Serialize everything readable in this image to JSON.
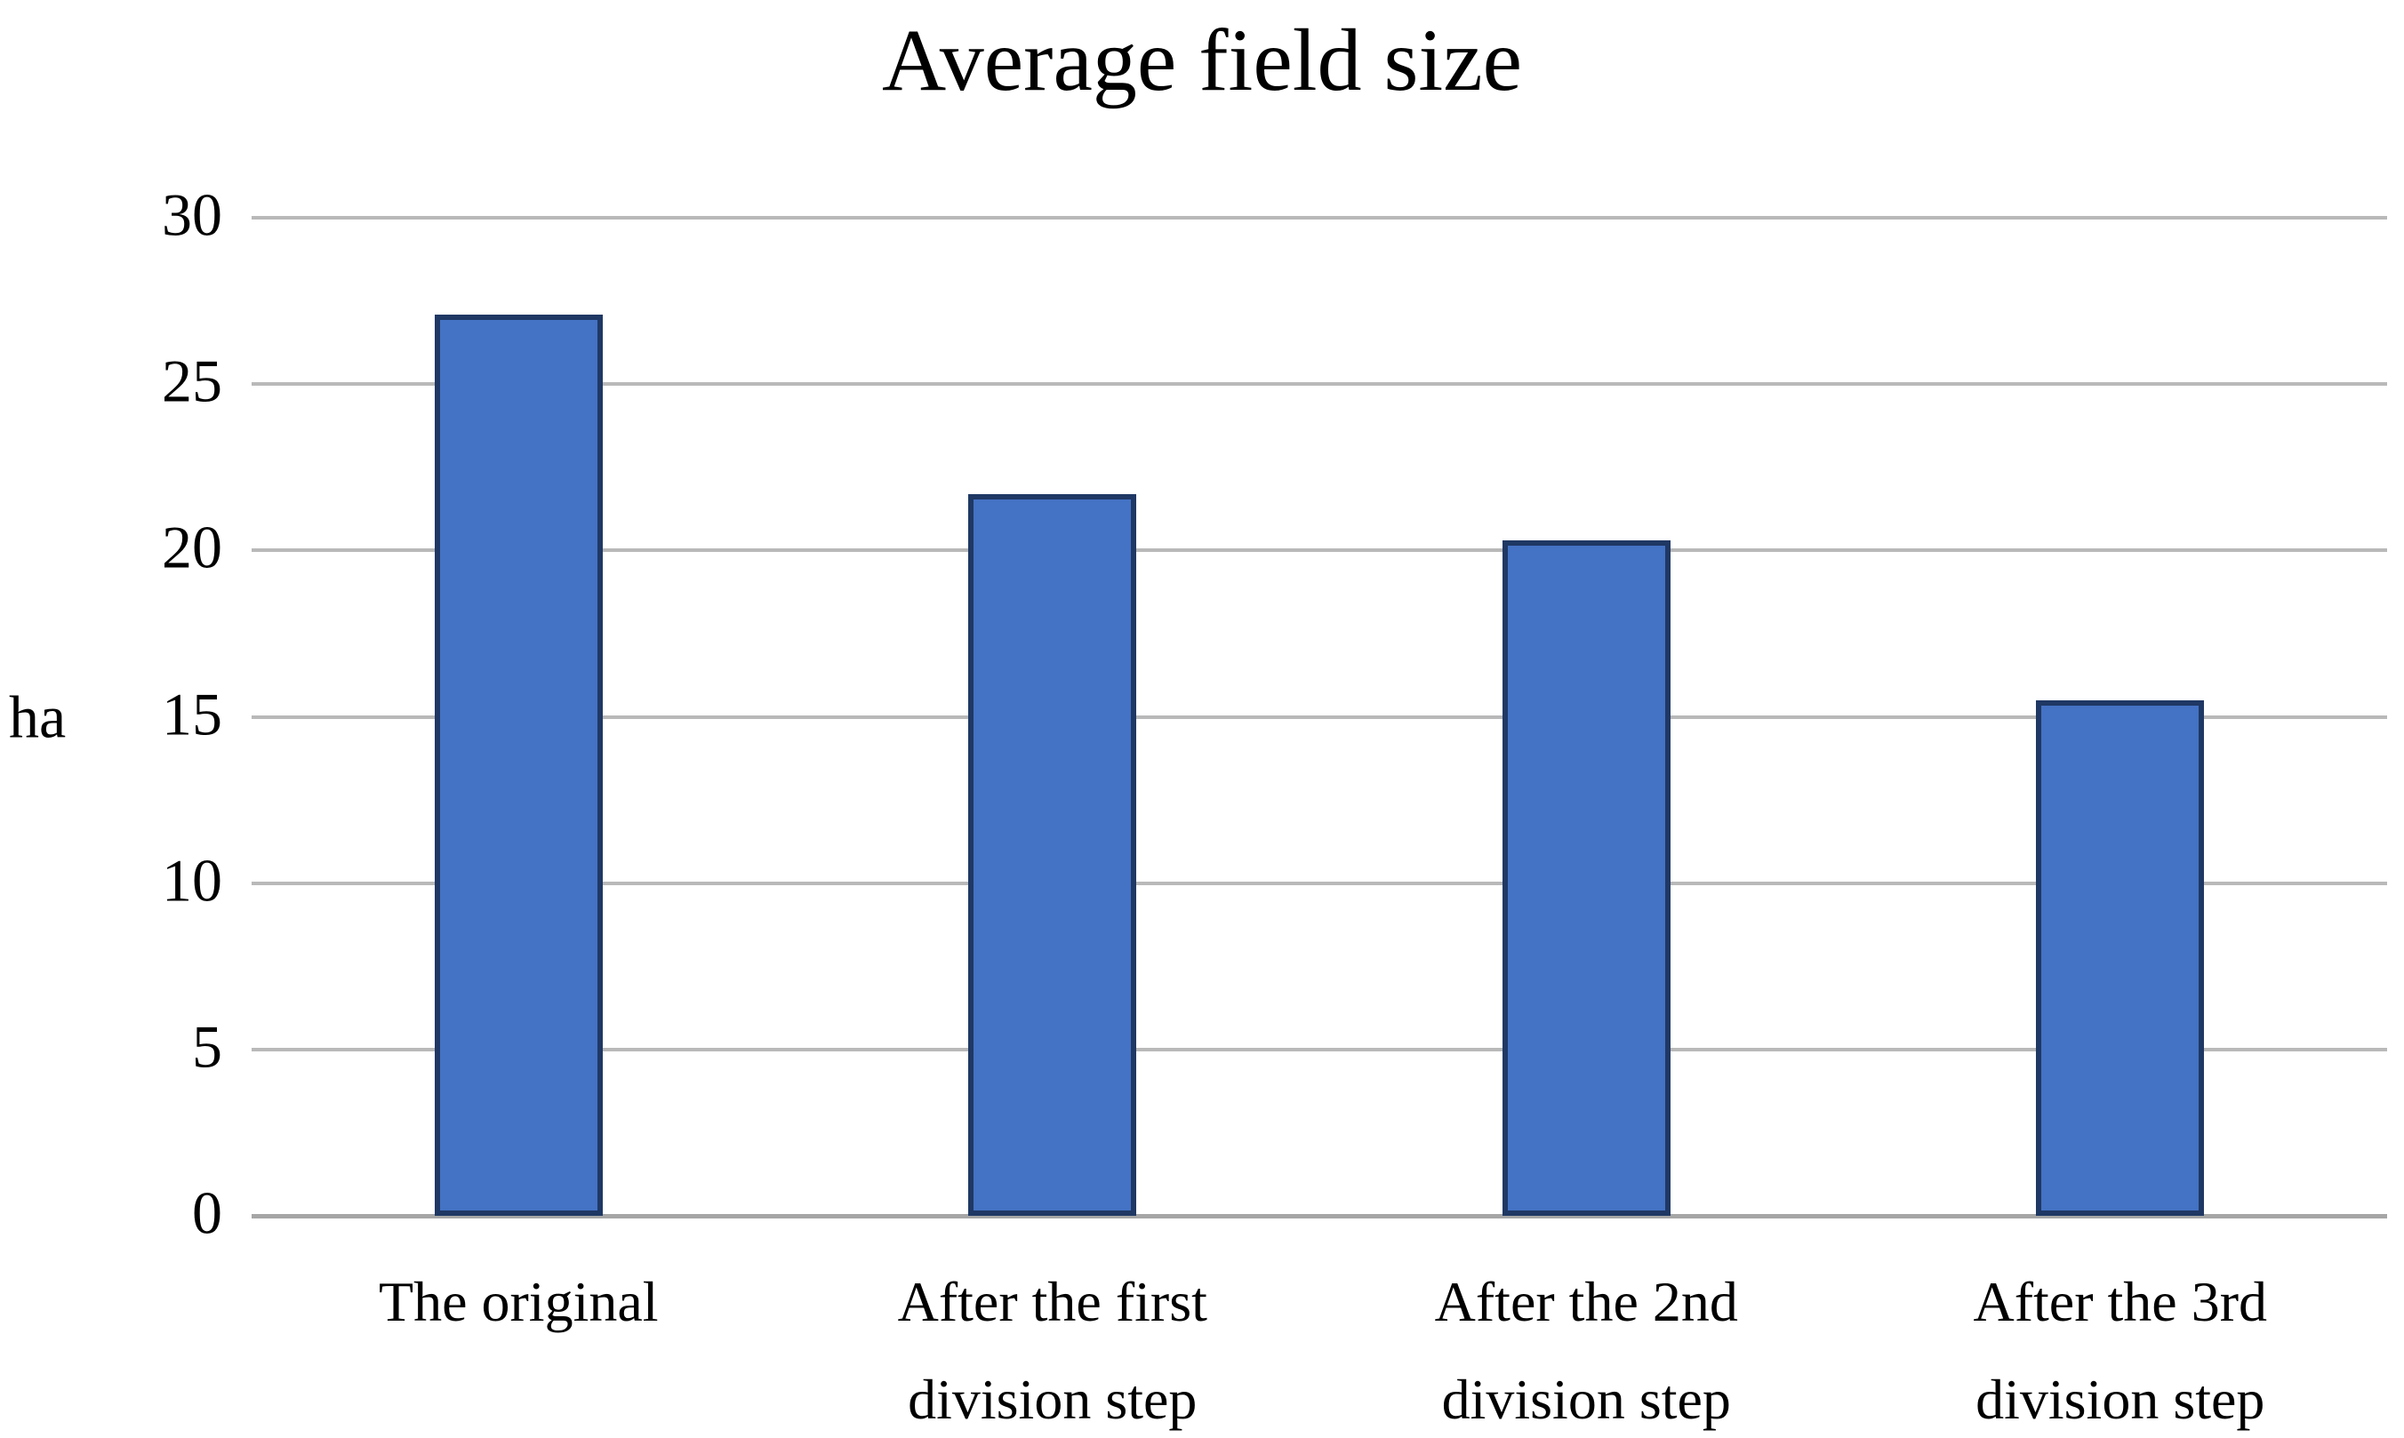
{
  "chart_data": {
    "type": "bar",
    "title": "Average field size",
    "ylabel": "ha",
    "xlabel": "",
    "categories": [
      "The original",
      "After the first\ndivision step",
      "After the 2nd\ndivision step",
      "After the 3rd\ndivision step"
    ],
    "values": [
      27.1,
      21.7,
      20.3,
      15.5
    ],
    "yticks": [
      0,
      5,
      10,
      15,
      20,
      25,
      30
    ],
    "ylim": [
      0,
      30
    ],
    "grid": true,
    "legend": "none",
    "colors": {
      "bar_fill": "#4472c4",
      "bar_border": "#1f3864",
      "gridline": "#b9b9b9",
      "axis_line": "#a6a6a6",
      "text": "#000000",
      "background": "#ffffff"
    }
  }
}
